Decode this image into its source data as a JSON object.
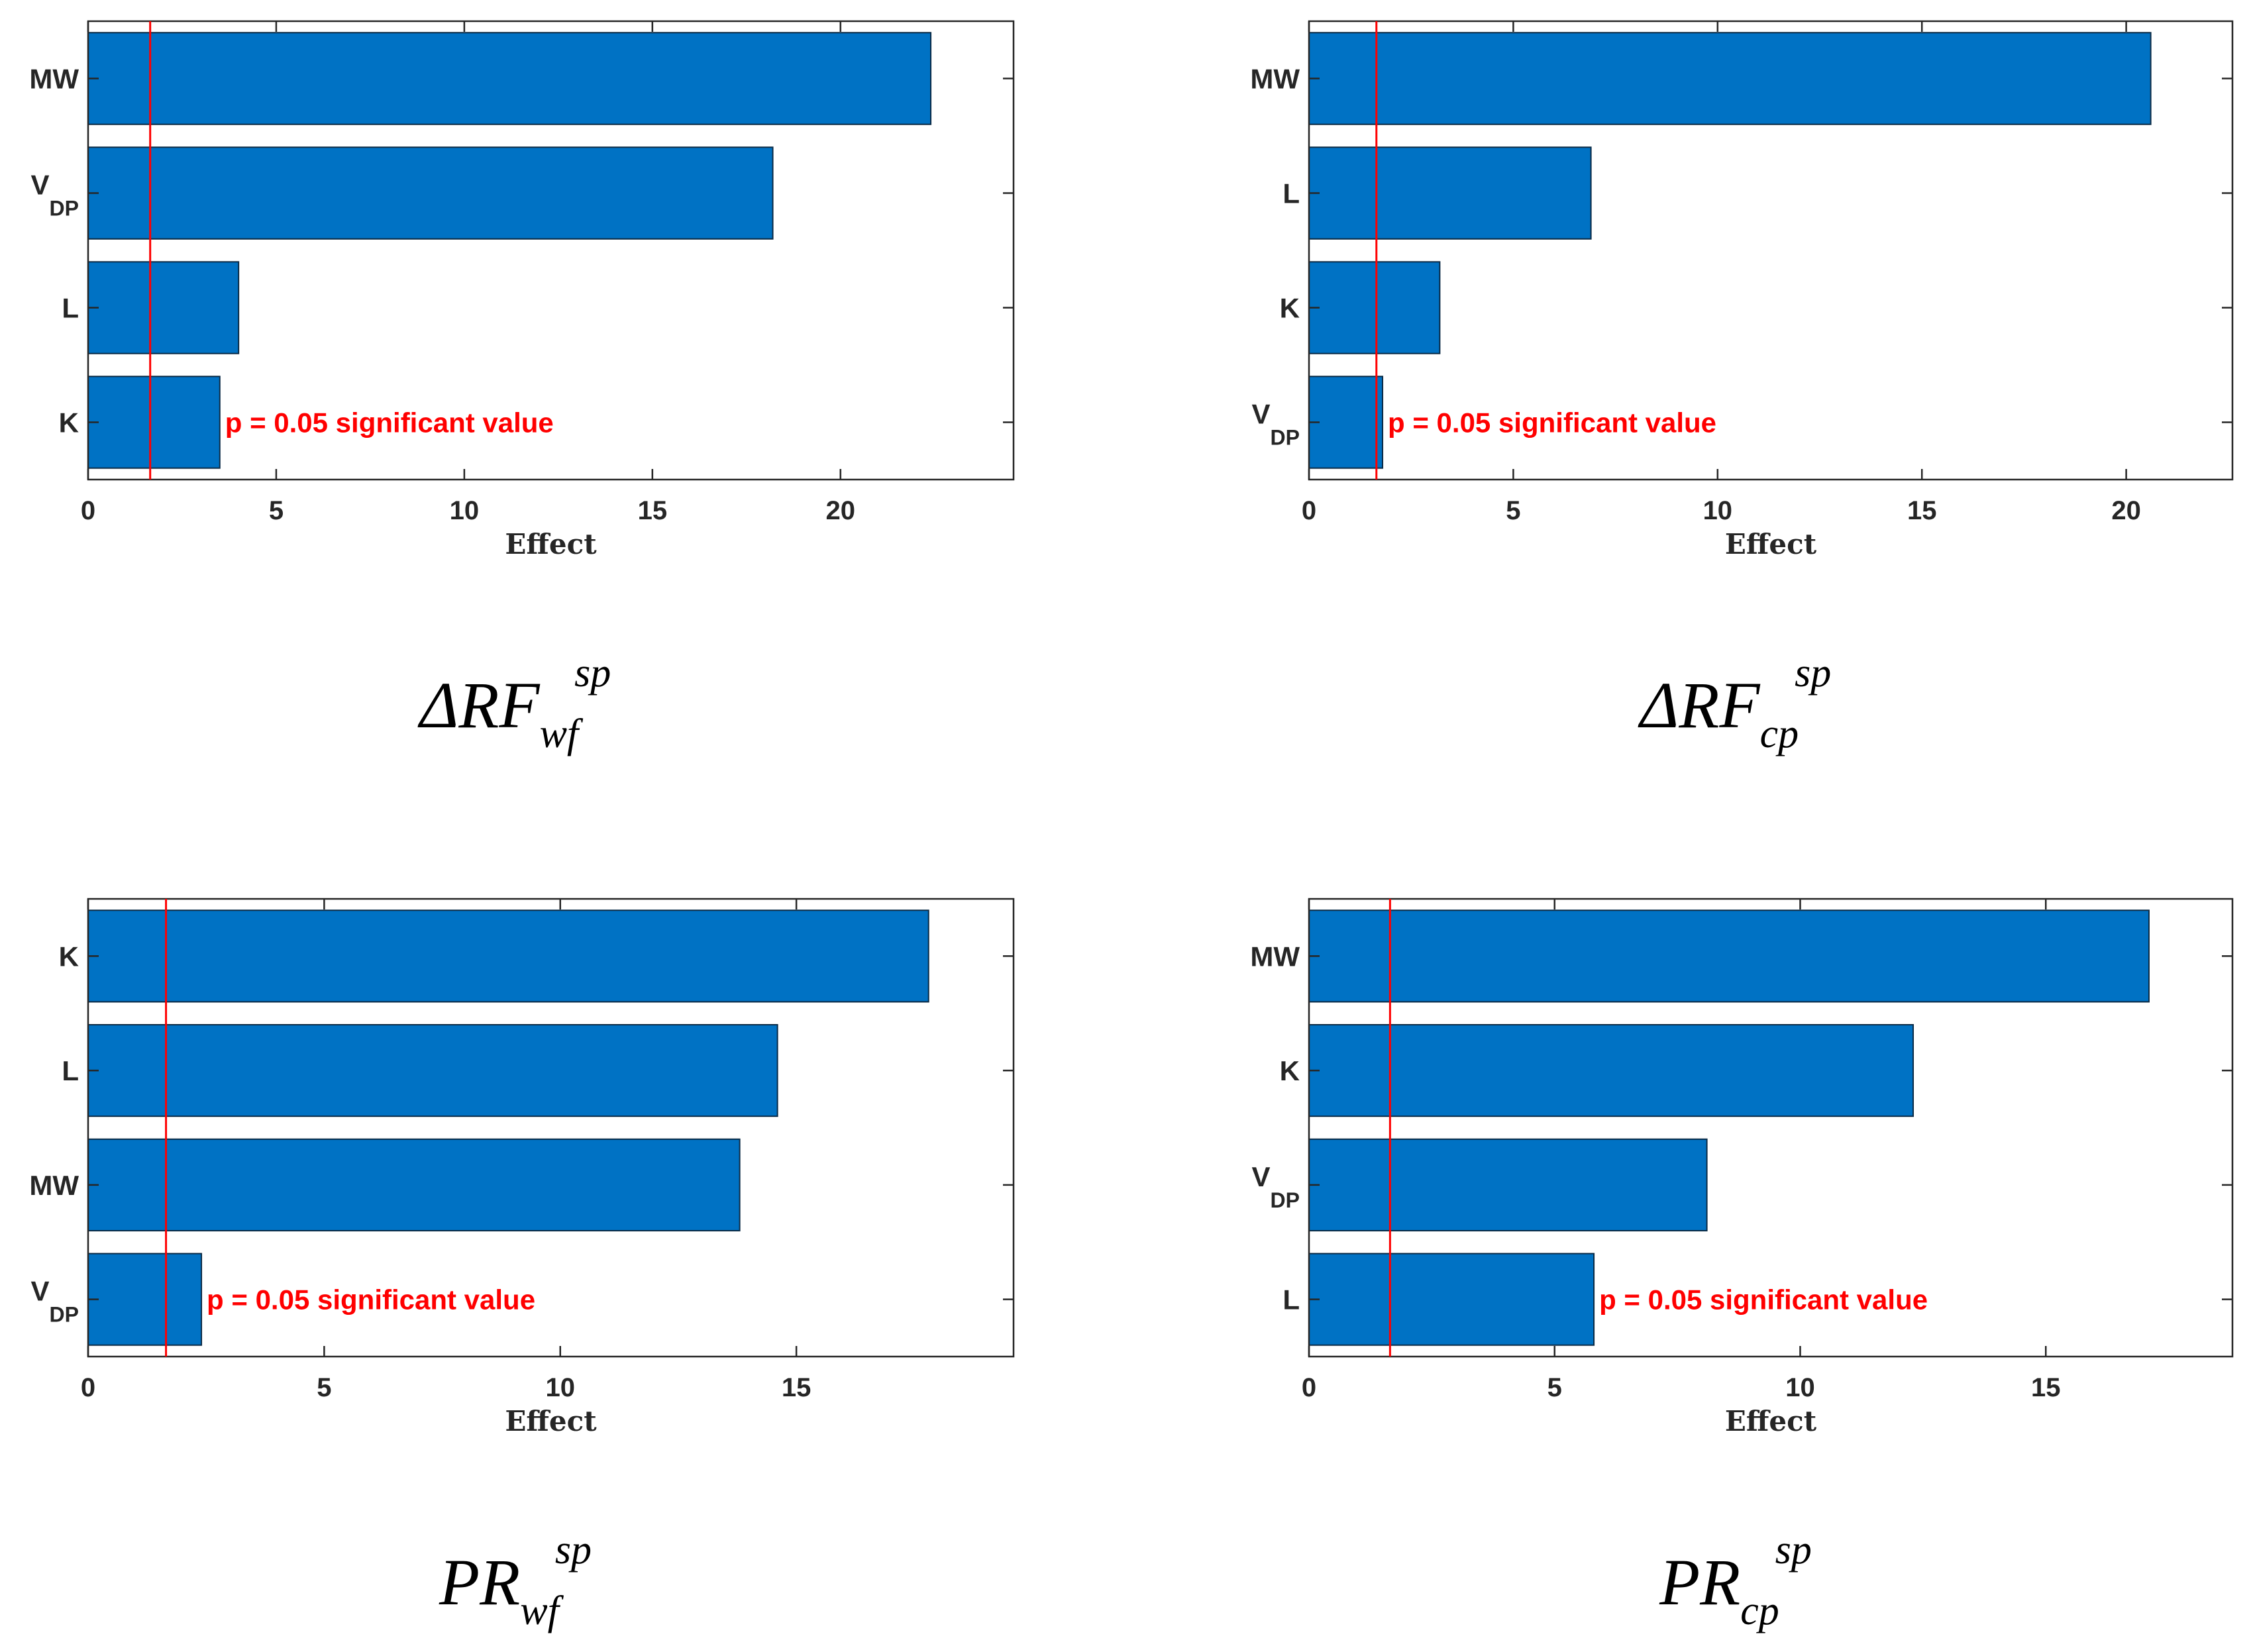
{
  "colors": {
    "bar": "#0072c4",
    "bar_edge": "#0a2a45",
    "threshold": "#ff0000",
    "axis": "#262626"
  },
  "chart_data": [
    {
      "type": "bar",
      "orientation": "horizontal",
      "title": {
        "main": "ΔRF",
        "subscript": "wf",
        "superscript": "sp"
      },
      "xlabel": "Effect",
      "categories": [
        {
          "main": "MW",
          "sub": ""
        },
        {
          "main": "V",
          "sub": "DP"
        },
        {
          "main": "L",
          "sub": ""
        },
        {
          "main": "K",
          "sub": ""
        }
      ],
      "values": [
        22.4,
        18.2,
        4.0,
        3.5
      ],
      "xlim": [
        0,
        24.6
      ],
      "xticks": [
        0,
        5,
        10,
        15,
        20
      ],
      "threshold": {
        "value": 1.65,
        "label": "p = 0.05 significant value"
      }
    },
    {
      "type": "bar",
      "orientation": "horizontal",
      "title": {
        "main": "ΔRF",
        "subscript": "cp",
        "superscript": "sp"
      },
      "xlabel": "Effect",
      "categories": [
        {
          "main": "MW",
          "sub": ""
        },
        {
          "main": "L",
          "sub": ""
        },
        {
          "main": "K",
          "sub": ""
        },
        {
          "main": "V",
          "sub": "DP"
        }
      ],
      "values": [
        20.6,
        6.9,
        3.2,
        1.8
      ],
      "xlim": [
        0,
        22.6
      ],
      "xticks": [
        0,
        5,
        10,
        15,
        20
      ],
      "threshold": {
        "value": 1.65,
        "label": "p = 0.05 significant value"
      }
    },
    {
      "type": "bar",
      "orientation": "horizontal",
      "title": {
        "main": "PR",
        "subscript": "wf",
        "superscript": "sp"
      },
      "xlabel": "Effect",
      "categories": [
        {
          "main": "K",
          "sub": ""
        },
        {
          "main": "L",
          "sub": ""
        },
        {
          "main": "MW",
          "sub": ""
        },
        {
          "main": "V",
          "sub": "DP"
        }
      ],
      "values": [
        17.8,
        14.6,
        13.8,
        2.4
      ],
      "xlim": [
        0,
        19.6
      ],
      "xticks": [
        0,
        5,
        10,
        15
      ],
      "threshold": {
        "value": 1.65,
        "label": "p = 0.05 significant value"
      }
    },
    {
      "type": "bar",
      "orientation": "horizontal",
      "title": {
        "main": "PR",
        "subscript": "cp",
        "superscript": "sp"
      },
      "xlabel": "Effect",
      "categories": [
        {
          "main": "MW",
          "sub": ""
        },
        {
          "main": "K",
          "sub": ""
        },
        {
          "main": "V",
          "sub": "DP"
        },
        {
          "main": "L",
          "sub": ""
        }
      ],
      "values": [
        17.1,
        12.3,
        8.1,
        5.8
      ],
      "xlim": [
        0,
        18.8
      ],
      "xticks": [
        0,
        5,
        10,
        15
      ],
      "threshold": {
        "value": 1.65,
        "label": "p = 0.05 significant value"
      }
    }
  ]
}
